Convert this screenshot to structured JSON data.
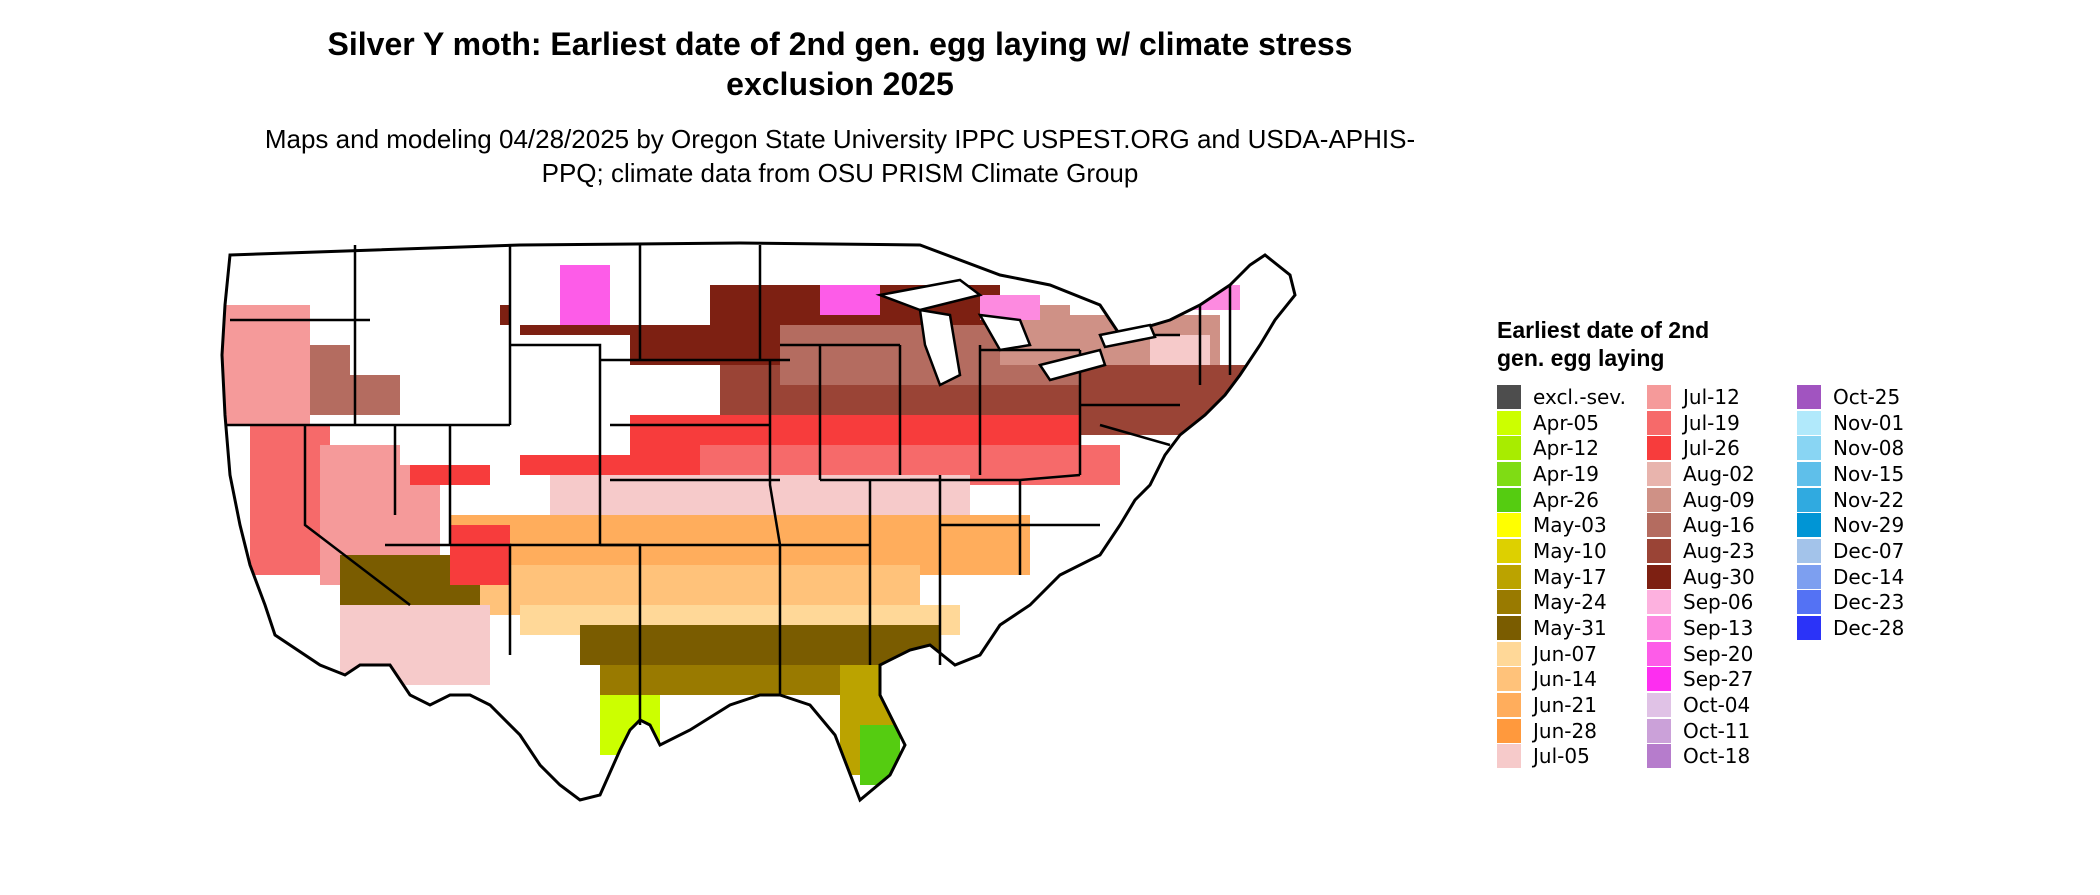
{
  "title": "Silver Y moth: Earliest date of 2nd gen. egg laying w/ climate stress exclusion 2025",
  "subtitle": "Maps and modeling 04/28/2025 by Oregon State University IPPC USPEST.ORG and USDA-APHIS-PPQ; climate data from OSU PRISM Climate Group",
  "legend": {
    "title": "Earliest date of 2nd gen. egg laying",
    "items": [
      {
        "label": "excl.-sev.",
        "color": "#4d4d4d"
      },
      {
        "label": "Apr-05",
        "color": "#ccff00"
      },
      {
        "label": "Apr-12",
        "color": "#a8ec00"
      },
      {
        "label": "Apr-19",
        "color": "#7fdc14"
      },
      {
        "label": "Apr-26",
        "color": "#55cc11"
      },
      {
        "label": "May-03",
        "color": "#ffff00"
      },
      {
        "label": "May-10",
        "color": "#ddd000"
      },
      {
        "label": "May-17",
        "color": "#bba300"
      },
      {
        "label": "May-24",
        "color": "#997a00"
      },
      {
        "label": "May-31",
        "color": "#7a5c00"
      },
      {
        "label": "Jun-07",
        "color": "#ffd898"
      },
      {
        "label": "Jun-14",
        "color": "#ffc27a"
      },
      {
        "label": "Jun-21",
        "color": "#ffad5c"
      },
      {
        "label": "Jun-28",
        "color": "#ff993d"
      },
      {
        "label": "Jul-05",
        "color": "#f6caca"
      },
      {
        "label": "Jul-12",
        "color": "#f59a9a"
      },
      {
        "label": "Jul-19",
        "color": "#f66a6a"
      },
      {
        "label": "Jul-26",
        "color": "#f73c3c"
      },
      {
        "label": "Aug-02",
        "color": "#e8b4ad"
      },
      {
        "label": "Aug-09",
        "color": "#cf9186"
      },
      {
        "label": "Aug-16",
        "color": "#b46c60"
      },
      {
        "label": "Aug-23",
        "color": "#9a4436"
      },
      {
        "label": "Aug-30",
        "color": "#7d2012"
      },
      {
        "label": "Sep-06",
        "color": "#fdb1df"
      },
      {
        "label": "Sep-13",
        "color": "#fd8ae0"
      },
      {
        "label": "Sep-20",
        "color": "#fd5ce8"
      },
      {
        "label": "Sep-27",
        "color": "#fd2ef0"
      },
      {
        "label": "Oct-04",
        "color": "#e0c2e6"
      },
      {
        "label": "Oct-11",
        "color": "#cba1d9"
      },
      {
        "label": "Oct-18",
        "color": "#b67ccc"
      },
      {
        "label": "Oct-25",
        "color": "#a154c0"
      },
      {
        "label": "Nov-01",
        "color": "#b1e9fb"
      },
      {
        "label": "Nov-08",
        "color": "#89d5f3"
      },
      {
        "label": "Nov-15",
        "color": "#5fbfea"
      },
      {
        "label": "Nov-22",
        "color": "#30aae0"
      },
      {
        "label": "Nov-29",
        "color": "#0095d5"
      },
      {
        "label": "Dec-07",
        "color": "#a3c3ea"
      },
      {
        "label": "Dec-14",
        "color": "#7d9ff0"
      },
      {
        "label": "Dec-23",
        "color": "#5472f4"
      },
      {
        "label": "Dec-28",
        "color": "#2b33f8"
      }
    ]
  }
}
